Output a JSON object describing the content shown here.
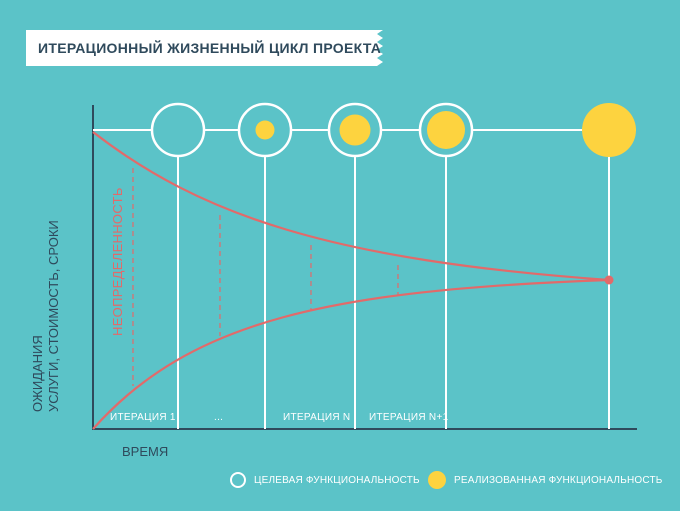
{
  "title": "ИТЕРАЦИОННЫЙ ЖИЗНЕННЫЙ ЦИКЛ ПРОЕКТА",
  "y_axis": {
    "line1": "ОЖИДАНИЯ",
    "line2": "УСЛУГИ, СТОИМОСТЬ, СРОКИ"
  },
  "x_axis": {
    "label": "ВРЕМЯ"
  },
  "uncertainty_label": "НЕОПРЕДЕЛЕННОСТЬ",
  "iterations": [
    {
      "label": "ИТЕРАЦИЯ 1"
    },
    {
      "label": "..."
    },
    {
      "label": "ИТЕРАЦИЯ N"
    },
    {
      "label": "ИТЕРАЦИЯ N+1"
    }
  ],
  "milestones": [
    {
      "realized": 0.0
    },
    {
      "realized": 0.35
    },
    {
      "realized": 0.62
    },
    {
      "realized": 0.8
    },
    {
      "realized": 1.0
    }
  ],
  "legend": {
    "target": "ЦЕЛЕВАЯ ФУНКЦИОНАЛЬНОСТЬ",
    "realized": "РЕАЛИЗОВАННАЯ ФУНКЦИОНАЛЬНОСТЬ"
  },
  "colors": {
    "background": "#5bc3c8",
    "white": "#ffffff",
    "yellow": "#fdd33f",
    "curve": "#e26a6a",
    "text_dark": "#2f4a5c"
  }
}
